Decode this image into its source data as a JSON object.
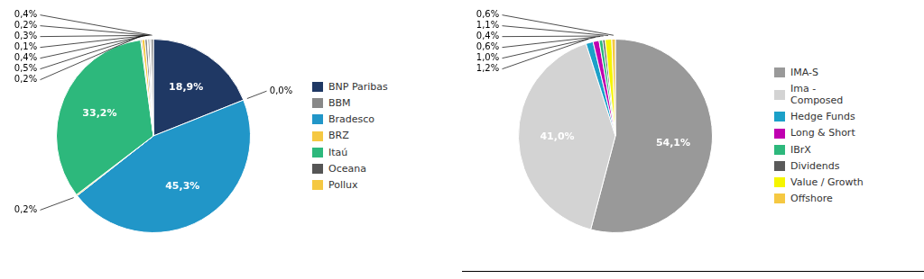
{
  "chart_data": [
    {
      "type": "pie",
      "categories": [
        "BNP Paribas",
        "BBM",
        "Bradesco",
        "BRZ",
        "Itaú",
        "Oceana",
        "Pollux",
        null,
        null,
        null,
        null,
        null
      ],
      "values": [
        18.9,
        0.0,
        45.3,
        0.2,
        33.2,
        0.2,
        0.5,
        0.4,
        0.1,
        0.3,
        0.2,
        0.4
      ],
      "value_labels": [
        "18,9%",
        "0,0%",
        "45,3%",
        "0,2%",
        "33,2%",
        "0,2%",
        "0,5%",
        "0,4%",
        "0,1%",
        "0,3%",
        "0,2%",
        "0,4%"
      ],
      "colors": [
        "#1F3864",
        "#888888",
        "#2196C8",
        "#F5C842",
        "#2DB87C",
        "#555555",
        "#F5C842",
        "#888888",
        "#AAAAAA",
        "#888888",
        "#AAAAAA",
        "#888888"
      ],
      "data_labels": true,
      "legend": "right"
    },
    {
      "type": "pie",
      "categories": [
        "IMA-S",
        "Ima -\nComposed",
        "Hedge Funds",
        "Long & Short",
        "IBrX",
        "Dividends",
        "Value / Growth",
        "Offshore"
      ],
      "values": [
        54.1,
        41.0,
        1.2,
        1.0,
        0.6,
        0.4,
        1.1,
        0.6
      ],
      "value_labels": [
        "54,1%",
        "41,0%",
        "1,2%",
        "1,0%",
        "0,6%",
        "0,4%",
        "1,1%",
        "0,6%"
      ],
      "colors": [
        "#999999",
        "#D3D3D3",
        "#1BA0C8",
        "#C000B0",
        "#2DB87C",
        "#5A5A5A",
        "#F5F500",
        "#F5C842"
      ],
      "data_labels": true,
      "legend": "right"
    }
  ]
}
